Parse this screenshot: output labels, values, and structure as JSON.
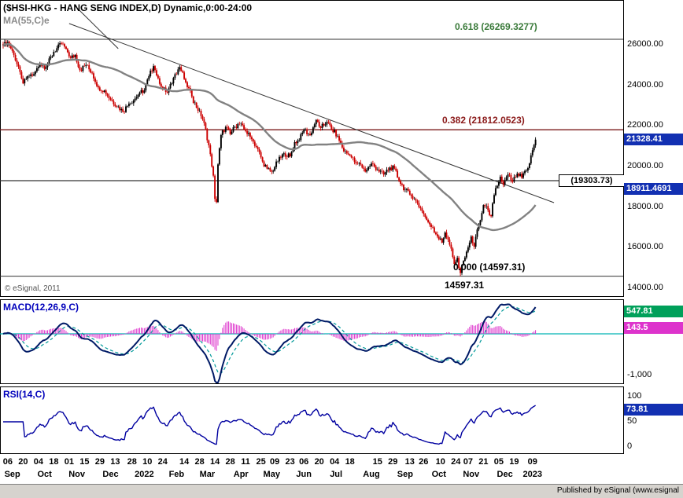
{
  "header": {
    "title": "($HSI-HKG - HANG SENG INDEX,D) Dynamic,0:00-24:00",
    "ma_label": "MA(55,C)e"
  },
  "watermark": "© eSignal, 2011",
  "footer": {
    "published": "Published by eSignal (www.esignal"
  },
  "labels": {
    "low": "14597.31",
    "level": "(19303.73)"
  },
  "fib": [
    {
      "label": "0.618 (26269.3277)",
      "value": 26269.3277,
      "color": "#3a7a3a"
    },
    {
      "label": "0.382 (21812.0523)",
      "value": 21812.0523,
      "color": "#8b1a1a"
    },
    {
      "label": "0.000 (14597.31)",
      "value": 14597.31,
      "color": "#000000"
    }
  ],
  "badges": {
    "last_price": "21328.41",
    "ma_value": "18911.4691",
    "macd": "547.81",
    "macd_hist": "143.5",
    "rsi": "73.81"
  },
  "price_axis": {
    "labels": [
      "26000.00",
      "24000.00",
      "22000.00",
      "20000.00",
      "18000.00",
      "16000.00",
      "14000.00"
    ],
    "values": [
      26000,
      24000,
      22000,
      20000,
      18000,
      16000,
      14000
    ]
  },
  "macd_panel": {
    "label": "MACD(12,26,9,C)",
    "axis_min": "-1,000"
  },
  "rsi_panel": {
    "label": "RSI(14,C)",
    "axis": [
      "100",
      "50",
      "0"
    ],
    "axis_values": [
      100,
      50,
      0
    ]
  },
  "x_axis": {
    "day_ticks": [
      {
        "t": "06",
        "i": 3
      },
      {
        "t": "20",
        "i": 13
      },
      {
        "t": "04",
        "i": 23
      },
      {
        "t": "18",
        "i": 33
      },
      {
        "t": "01",
        "i": 43
      },
      {
        "t": "15",
        "i": 53
      },
      {
        "t": "29",
        "i": 63
      },
      {
        "t": "13",
        "i": 73
      },
      {
        "t": "28",
        "i": 84
      },
      {
        "t": "10",
        "i": 94
      },
      {
        "t": "24",
        "i": 104
      },
      {
        "t": "14",
        "i": 118
      },
      {
        "t": "28",
        "i": 128
      },
      {
        "t": "14",
        "i": 138
      },
      {
        "t": "28",
        "i": 148
      },
      {
        "t": "11",
        "i": 158
      },
      {
        "t": "25",
        "i": 168
      },
      {
        "t": "09",
        "i": 177
      },
      {
        "t": "23",
        "i": 187
      },
      {
        "t": "06",
        "i": 196
      },
      {
        "t": "20",
        "i": 206
      },
      {
        "t": "04",
        "i": 216
      },
      {
        "t": "18",
        "i": 226
      },
      {
        "t": "15",
        "i": 244
      },
      {
        "t": "29",
        "i": 254
      },
      {
        "t": "13",
        "i": 265
      },
      {
        "t": "26",
        "i": 274
      },
      {
        "t": "10",
        "i": 285
      },
      {
        "t": "24",
        "i": 295
      },
      {
        "t": "07",
        "i": 303
      },
      {
        "t": "21",
        "i": 313
      },
      {
        "t": "05",
        "i": 323
      },
      {
        "t": "19",
        "i": 333
      },
      {
        "t": "09",
        "i": 345
      }
    ],
    "month_labels": [
      {
        "t": "Sep",
        "i": 6
      },
      {
        "t": "Oct",
        "i": 27
      },
      {
        "t": "Nov",
        "i": 48
      },
      {
        "t": "Dec",
        "i": 70
      },
      {
        "t": "2022",
        "i": 92
      },
      {
        "t": "Feb",
        "i": 113
      },
      {
        "t": "Mar",
        "i": 133
      },
      {
        "t": "Apr",
        "i": 155
      },
      {
        "t": "May",
        "i": 175
      },
      {
        "t": "Jun",
        "i": 196
      },
      {
        "t": "Jul",
        "i": 217
      },
      {
        "t": "Aug",
        "i": 240
      },
      {
        "t": "Sep",
        "i": 262
      },
      {
        "t": "Oct",
        "i": 284
      },
      {
        "t": "Nov",
        "i": 305
      },
      {
        "t": "Dec",
        "i": 327
      },
      {
        "t": "2023",
        "i": 345
      }
    ]
  },
  "colors": {
    "candle_up": "#000000",
    "candle_down": "#cc0000",
    "ma": "#828282",
    "macd_line": "#001a66",
    "signal_line": "#009999",
    "hist": "#dd33cc",
    "zero_line": "#00b4b4",
    "rsi_line": "#0000a0",
    "badge_blue": "#1230b2",
    "badge_green": "#00a05a",
    "badge_magenta": "#dd33cc",
    "level_line": "#333333",
    "fib382_line": "#7a1a1a",
    "trendline": "#333333"
  },
  "chart_data": {
    "type": "candlestick",
    "symbol": "$HSI-HKG",
    "name": "HANG SENG INDEX",
    "interval": "D",
    "session": "0:00-24:00",
    "num_bars": 348,
    "last_close": 21328.41,
    "ma_period": 55,
    "ma_last": 18911.4691,
    "macd_params": [
      12,
      26,
      9
    ],
    "macd_last": 547.81,
    "macd_hist_last": 143.5,
    "rsi_period": 14,
    "rsi_last": 73.81,
    "y_axis_ticks": [
      26000,
      24000,
      22000,
      20000,
      18000,
      16000,
      14000
    ],
    "fib_levels": {
      "0.618": 26269.3277,
      "0.382": 21812.0523,
      "0.000": 14597.31
    },
    "horizontal_level": 19303.73,
    "low_of_move": 14597.31,
    "trendlines": [
      {
        "i1": 43,
        "p1": 27045,
        "i2": 359,
        "p2": 18219
      },
      {
        "i1": 47,
        "p1": 27900,
        "i2": 75,
        "p2": 25810
      }
    ],
    "anchors": [
      [
        0,
        25950
      ],
      [
        3,
        26150
      ],
      [
        7,
        25500
      ],
      [
        12,
        24350
      ],
      [
        13,
        24100
      ],
      [
        16,
        24450
      ],
      [
        20,
        24550
      ],
      [
        24,
        25050
      ],
      [
        28,
        24900
      ],
      [
        33,
        25650
      ],
      [
        38,
        26050
      ],
      [
        41,
        25800
      ],
      [
        44,
        25350
      ],
      [
        47,
        25500
      ],
      [
        50,
        24750
      ],
      [
        54,
        25000
      ],
      [
        58,
        24600
      ],
      [
        62,
        23900
      ],
      [
        66,
        23750
      ],
      [
        70,
        23300
      ],
      [
        75,
        22950
      ],
      [
        78,
        22700
      ],
      [
        82,
        23100
      ],
      [
        86,
        23350
      ],
      [
        89,
        23650
      ],
      [
        92,
        23750
      ],
      [
        95,
        24450
      ],
      [
        98,
        24950
      ],
      [
        101,
        24350
      ],
      [
        104,
        23850
      ],
      [
        107,
        23650
      ],
      [
        110,
        24100
      ],
      [
        112,
        24550
      ],
      [
        115,
        24900
      ],
      [
        119,
        24150
      ],
      [
        123,
        23450
      ],
      [
        126,
        22900
      ],
      [
        128,
        22750
      ],
      [
        131,
        22150
      ],
      [
        134,
        21050
      ],
      [
        136,
        20000
      ],
      [
        137,
        19550
      ],
      [
        138,
        18400
      ],
      [
        139,
        18250
      ],
      [
        140,
        20100
      ],
      [
        142,
        21550
      ],
      [
        145,
        21950
      ],
      [
        148,
        21600
      ],
      [
        151,
        21950
      ],
      [
        154,
        22100
      ],
      [
        158,
        21750
      ],
      [
        162,
        21350
      ],
      [
        166,
        20850
      ],
      [
        169,
        20250
      ],
      [
        172,
        19900
      ],
      [
        175,
        19750
      ],
      [
        179,
        20250
      ],
      [
        183,
        20650
      ],
      [
        187,
        20500
      ],
      [
        190,
        21200
      ],
      [
        193,
        21300
      ],
      [
        196,
        21800
      ],
      [
        200,
        21550
      ],
      [
        204,
        22300
      ],
      [
        207,
        21900
      ],
      [
        211,
        22200
      ],
      [
        214,
        21850
      ],
      [
        218,
        21500
      ],
      [
        222,
        20750
      ],
      [
        226,
        20550
      ],
      [
        230,
        20150
      ],
      [
        233,
        20100
      ],
      [
        236,
        19750
      ],
      [
        240,
        20150
      ],
      [
        244,
        19850
      ],
      [
        248,
        19600
      ],
      [
        252,
        19950
      ],
      [
        255,
        19900
      ],
      [
        258,
        19300
      ],
      [
        262,
        18850
      ],
      [
        266,
        18550
      ],
      [
        270,
        18200
      ],
      [
        273,
        17800
      ],
      [
        277,
        17250
      ],
      [
        280,
        17000
      ],
      [
        283,
        16550
      ],
      [
        286,
        16250
      ],
      [
        288,
        16750
      ],
      [
        291,
        16150
      ],
      [
        293,
        15550
      ],
      [
        294,
        15200
      ],
      [
        296,
        15500
      ],
      [
        298,
        14750
      ],
      [
        300,
        15350
      ],
      [
        302,
        15800
      ],
      [
        304,
        16250
      ],
      [
        305,
        16550
      ],
      [
        307,
        16050
      ],
      [
        309,
        16900
      ],
      [
        311,
        17350
      ],
      [
        313,
        18100
      ],
      [
        316,
        17850
      ],
      [
        318,
        17550
      ],
      [
        320,
        18600
      ],
      [
        322,
        19050
      ],
      [
        324,
        19500
      ],
      [
        326,
        19100
      ],
      [
        329,
        19600
      ],
      [
        332,
        19250
      ],
      [
        335,
        19650
      ],
      [
        338,
        19450
      ],
      [
        341,
        19800
      ],
      [
        343,
        20150
      ],
      [
        344,
        20550
      ],
      [
        345,
        20800
      ],
      [
        346,
        21050
      ],
      [
        347,
        21328.41
      ]
    ]
  }
}
